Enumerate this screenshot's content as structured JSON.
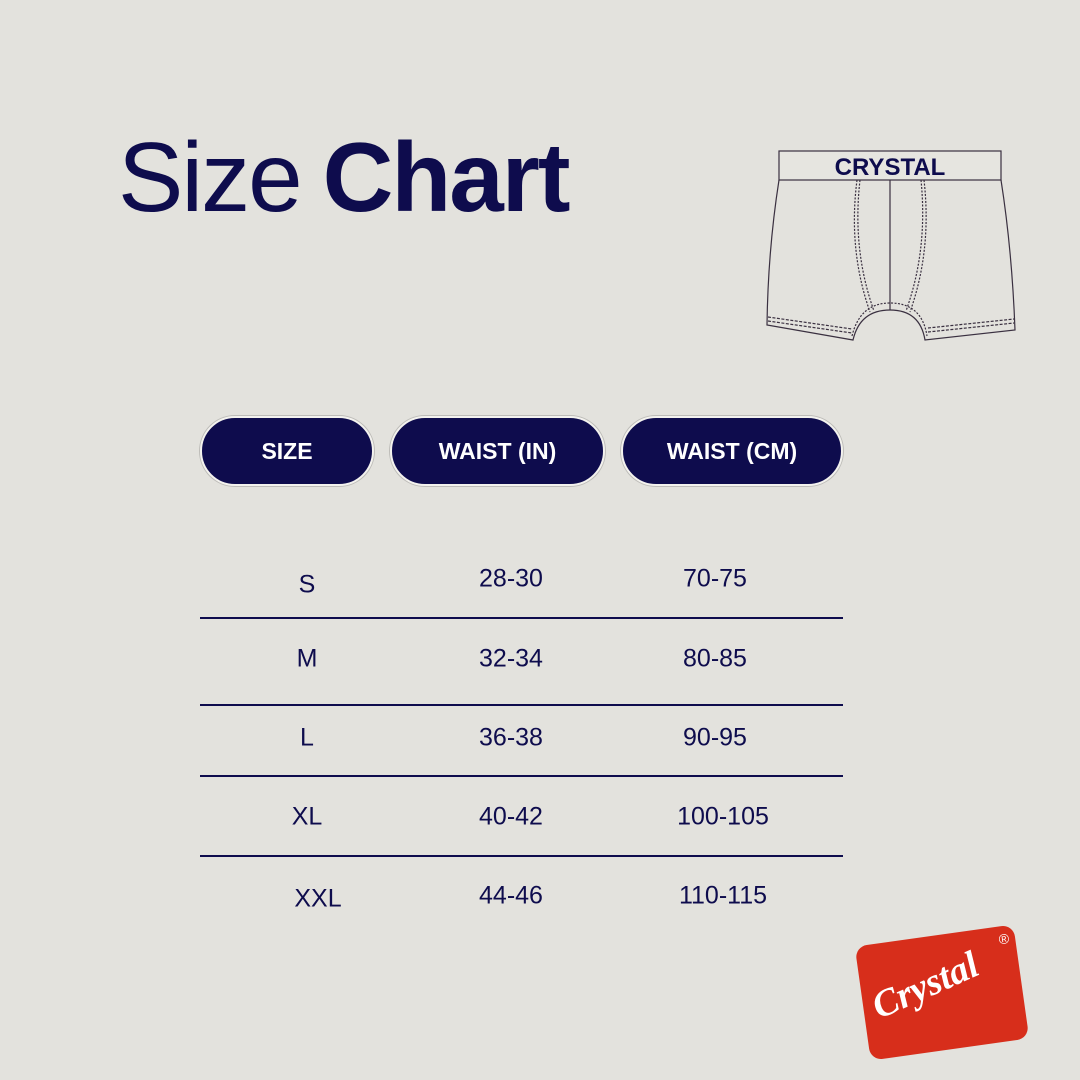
{
  "title": {
    "light": "Size",
    "bold": "Chart"
  },
  "garment": {
    "waistband_text": "CRYSTAL"
  },
  "table": {
    "headers": [
      "SIZE",
      "WAIST (IN)",
      "WAIST (CM)"
    ],
    "rows": [
      [
        "S",
        "28-30",
        "70-75"
      ],
      [
        "M",
        "32-34",
        "80-85"
      ],
      [
        "L",
        "36-38",
        "90-95"
      ],
      [
        "XL",
        "40-42",
        "100-105"
      ],
      [
        "XXL",
        "44-46",
        "110-115"
      ]
    ]
  },
  "logo": {
    "text": "Crystal",
    "mark": "®"
  },
  "colors": {
    "navy": "#0e0c4d",
    "background": "#e3e2dd",
    "logo_red": "#d72e1b"
  }
}
